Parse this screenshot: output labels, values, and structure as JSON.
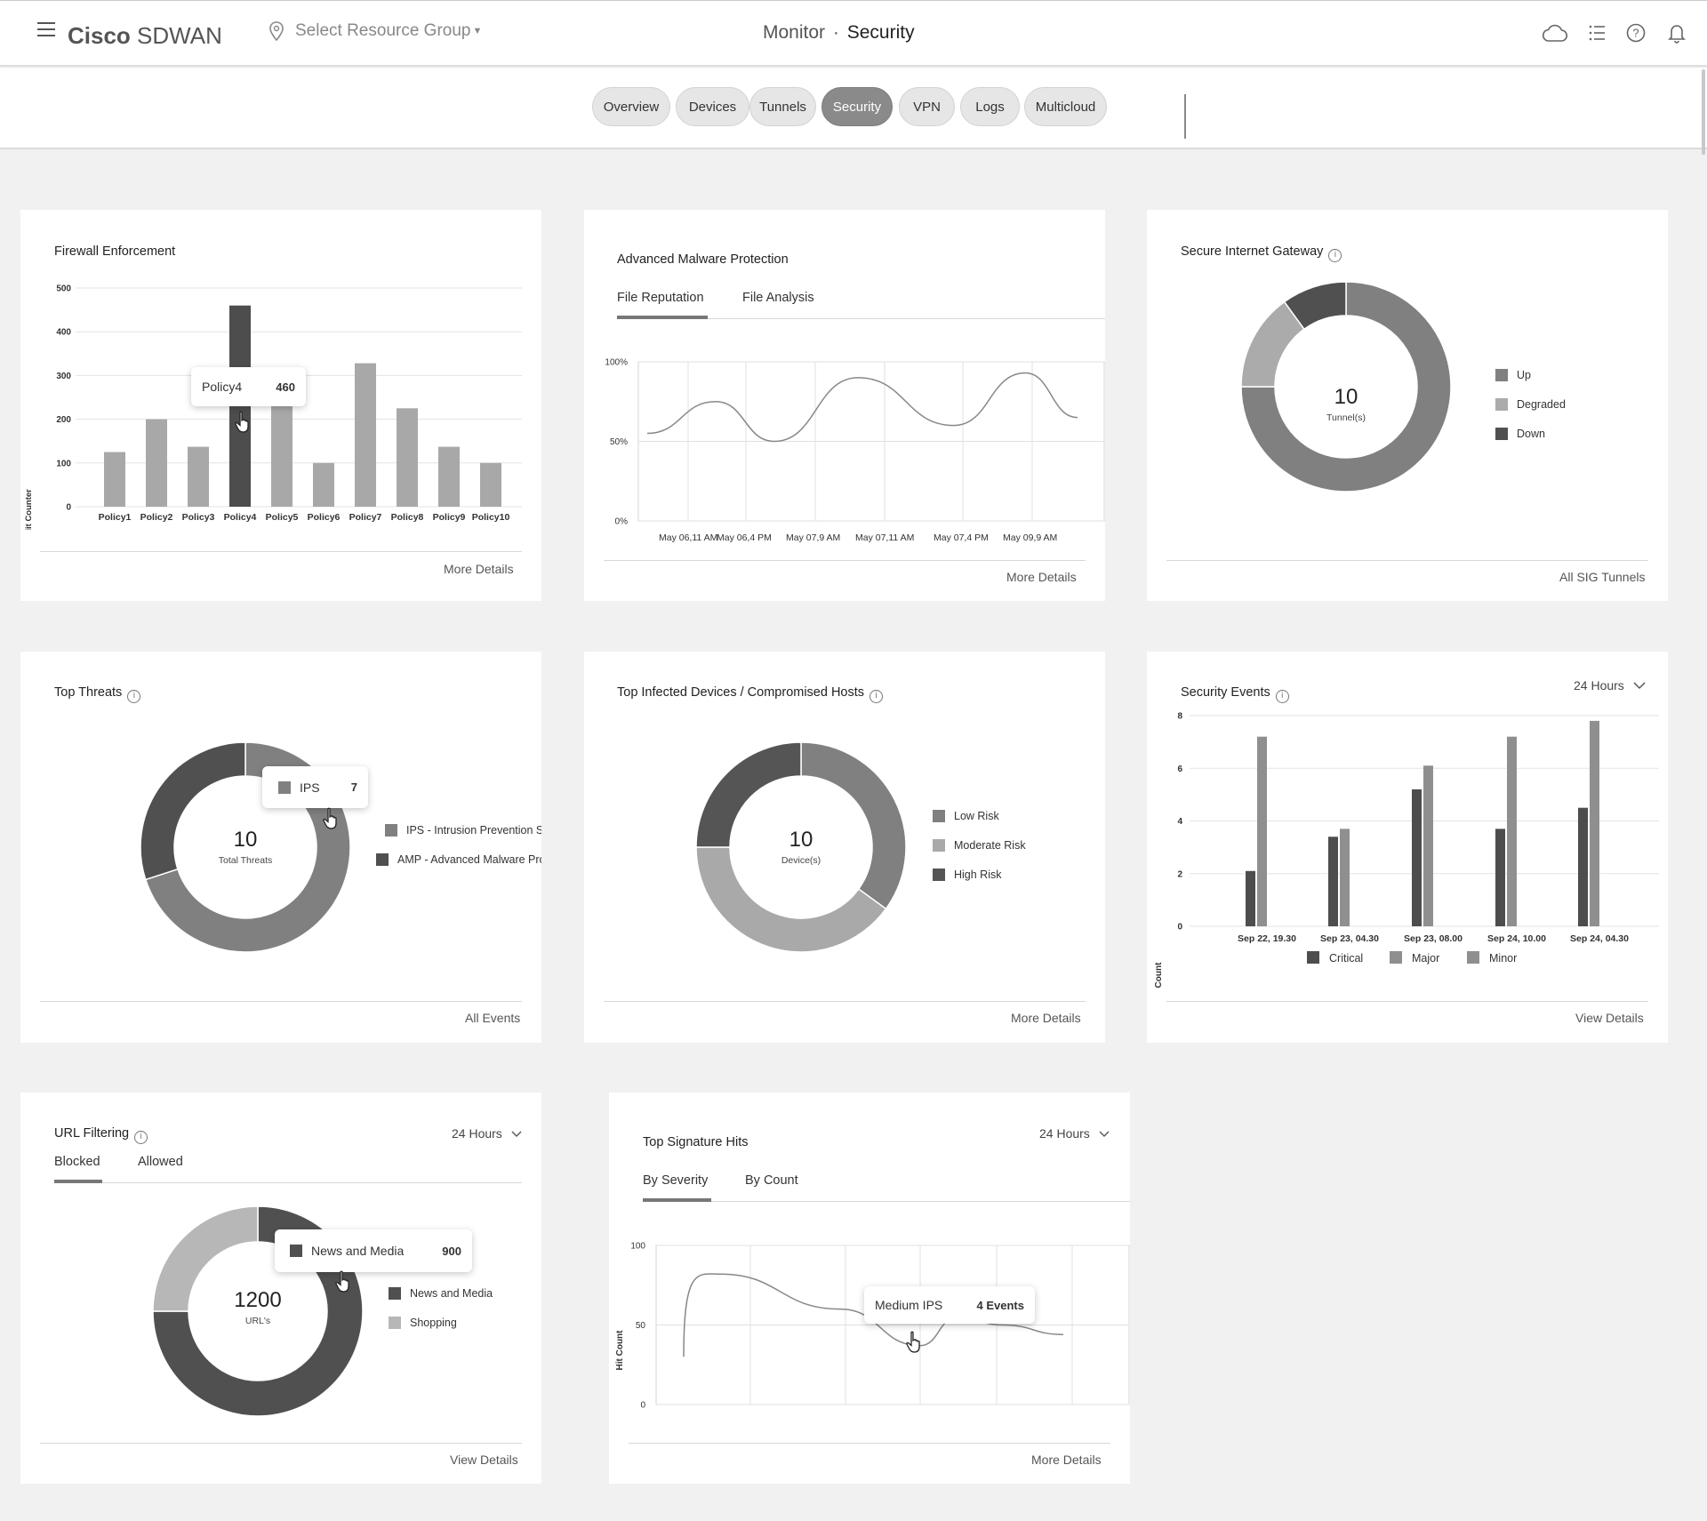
{
  "header": {
    "brand": "Cisco SDWAN",
    "brand_bold": "Cisco",
    "brand_light": "SDWAN",
    "resource_group": "Select Resource Group",
    "crumb_a": "Monitor",
    "crumb_sep": "·",
    "crumb_b": "Security",
    "icons": [
      "menu-icon",
      "location-pin-icon",
      "cloud-icon",
      "list-icon",
      "help-icon",
      "bell-icon"
    ]
  },
  "tabs": [
    {
      "label": "Overview",
      "active": false
    },
    {
      "label": "Devices",
      "active": false
    },
    {
      "label": "Tunnels",
      "active": false
    },
    {
      "label": "Security",
      "active": true
    },
    {
      "label": "VPN",
      "active": false
    },
    {
      "label": "Logs",
      "active": false
    },
    {
      "label": "Multicloud",
      "active": false
    }
  ],
  "firewall": {
    "title": "Firewall Enforcement",
    "link": "More Details",
    "tooltip": {
      "label": "Policy4",
      "value": "460"
    },
    "chart_data": {
      "type": "bar",
      "ylabel": "Hit Counter",
      "ylim": [
        0,
        500
      ],
      "yticks": [
        0,
        100,
        200,
        300,
        400,
        500
      ],
      "categories": [
        "Policy1",
        "Policy2",
        "Policy3",
        "Policy4",
        "Policy5",
        "Policy6",
        "Policy7",
        "Policy8",
        "Policy9",
        "Policy10"
      ],
      "values": [
        125,
        200,
        137,
        460,
        235,
        100,
        328,
        225,
        137,
        100
      ],
      "highlight_index": 3
    }
  },
  "amp": {
    "title": "Advanced Malware Protection",
    "tabs": [
      "File Reputation",
      "File Analysis"
    ],
    "link": "More Details",
    "chart_data": {
      "type": "line",
      "yticks": [
        "0%",
        "50%",
        "100%"
      ],
      "ylim": [
        0,
        100
      ],
      "xticks": [
        "May 06,11 AM",
        "May 06,4 PM",
        "May 07,9 AM",
        "May 07,11 AM",
        "May 07,4 PM",
        "May 09,9 AM"
      ],
      "series": [
        {
          "values": [
            55,
            75,
            50,
            90,
            60,
            93,
            65
          ]
        }
      ]
    }
  },
  "sig": {
    "title": "Secure Internet Gateway",
    "center_value": "10",
    "center_label": "Tunnel(s)",
    "link": "All SIG Tunnels",
    "chart_data": {
      "type": "pie",
      "labels": [
        "Up",
        "Degraded",
        "Down"
      ],
      "values": [
        7.5,
        1.5,
        1
      ],
      "colors": [
        "#808080",
        "#ababab",
        "#505050"
      ]
    }
  },
  "threats": {
    "title": "Top Threats",
    "center_value": "10",
    "center_label": "Total Threats",
    "link": "All Events",
    "tooltip": {
      "label": "IPS",
      "value": "7"
    },
    "chart_data": {
      "type": "pie",
      "labels": [
        "IPS - Intrusion Prevention System",
        "AMP - Advanced Malware Protection"
      ],
      "values": [
        7,
        3
      ],
      "colors": [
        "#808080",
        "#505050"
      ]
    }
  },
  "infected": {
    "title": "Top Infected Devices / Compromised Hosts",
    "center_value": "10",
    "center_label": "Device(s)",
    "link": "More Details",
    "chart_data": {
      "type": "pie",
      "labels": [
        "Low Risk",
        "Moderate Risk",
        "High Risk"
      ],
      "values": [
        3.5,
        4,
        2.5
      ],
      "colors": [
        "#808080",
        "#a9a9a9",
        "#555555"
      ]
    }
  },
  "events": {
    "title": "Security Events",
    "range": "24 Hours",
    "link": "View Details",
    "chart_data": {
      "type": "bar",
      "ylabel": "Count",
      "ylim": [
        0,
        8
      ],
      "yticks": [
        0,
        2,
        4,
        6,
        8
      ],
      "categories": [
        "Sep 22, 19.30",
        "Sep 23, 04.30",
        "Sep 23, 08.00",
        "Sep 24, 10.00",
        "Sep 24, 04.30"
      ],
      "series": [
        {
          "name": "Critical",
          "values": [
            2.1,
            3.4,
            5.2,
            3.7,
            4.5
          ],
          "color": "#4d4d4d"
        },
        {
          "name": "Major",
          "values": [
            7.2,
            3.7,
            6.1,
            7.2,
            7.8
          ],
          "color": "#8f8f8f"
        },
        {
          "name": "Minor",
          "values": [
            0,
            0,
            0,
            0,
            0
          ],
          "color": "#8f8f8f"
        }
      ]
    }
  },
  "url": {
    "title": "URL Filtering",
    "range": "24 Hours",
    "tabs": [
      "Blocked",
      "Allowed"
    ],
    "center_value": "1200",
    "center_label": "URL's",
    "link": "View Details",
    "tooltip": {
      "label": "News and Media",
      "value": "900"
    },
    "chart_data": {
      "type": "pie",
      "labels": [
        "News and Media",
        "Shopping"
      ],
      "values": [
        900,
        300
      ],
      "colors": [
        "#505050",
        "#b7b7b7"
      ]
    }
  },
  "sighits": {
    "title": "Top Signature Hits",
    "range": "24 Hours",
    "tabs": [
      "By Severity",
      "By Count"
    ],
    "link": "More Details",
    "tooltip": {
      "label": "Medium IPS",
      "value": "4 Events"
    },
    "chart_data": {
      "type": "line",
      "ylabel": "Hit Count",
      "ylim": [
        0,
        100
      ],
      "yticks": [
        0,
        50,
        100
      ],
      "series": [
        {
          "values": [
            30,
            82,
            60,
            37,
            55,
            50,
            44
          ]
        }
      ]
    }
  }
}
